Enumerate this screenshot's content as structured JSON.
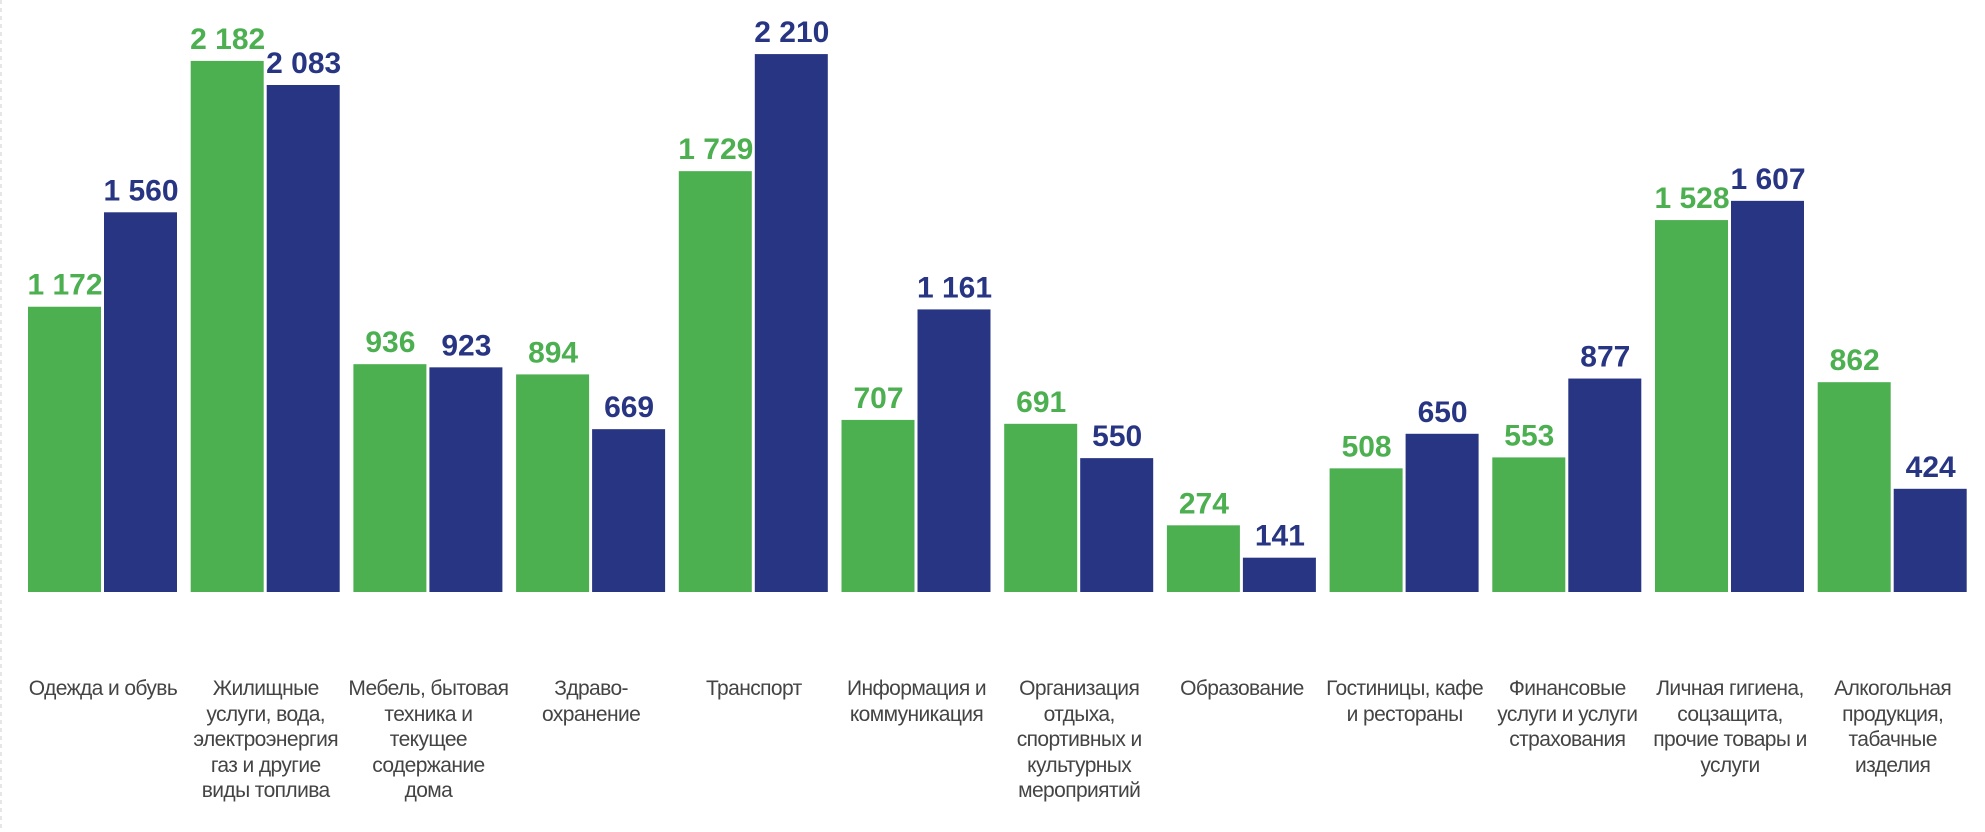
{
  "chart_data": {
    "type": "bar",
    "categories": [
      "Одежда и обувь",
      "Жилищные услуги, вода, электроэнергия газ и другие виды топлива",
      "Мебель, бытовая техника и текущее содержание дома",
      "Здраво-охранение",
      "Транспорт",
      "Информация и коммуникация",
      "Организация отдыха, спортивных и культурных мероприятий",
      "Образование",
      "Гостиницы, кафе и рестораны",
      "Финансовые услуги и услуги страхования",
      "Личная гигиена, соцзащита, прочие товары и услуги",
      "Алкогольная продукция, табачные изделия"
    ],
    "series": [
      {
        "color": "#4caf50",
        "values": [
          1172,
          2182,
          936,
          894,
          1729,
          707,
          691,
          274,
          508,
          553,
          1528,
          862
        ],
        "value_labels": [
          "1 172",
          "2 182",
          "936",
          "894",
          "1 729",
          "707",
          "691",
          "274",
          "508",
          "553",
          "1 528",
          "862"
        ]
      },
      {
        "color": "#283583",
        "values": [
          1560,
          2083,
          923,
          669,
          2210,
          1161,
          550,
          141,
          650,
          877,
          1607,
          424
        ],
        "value_labels": [
          "1 560",
          "2 083",
          "923",
          "669",
          "2 210",
          "1 161",
          "550",
          "141",
          "650",
          "877",
          "1 607",
          "424"
        ]
      }
    ]
  }
}
